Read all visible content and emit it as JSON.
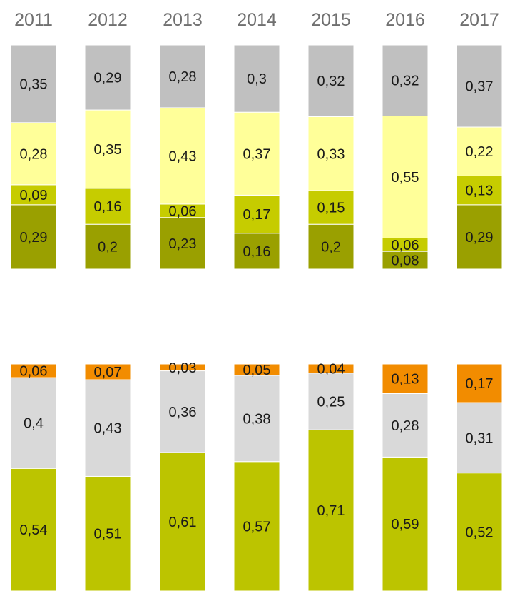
{
  "chart_data": [
    {
      "type": "bar",
      "stacked": "percent",
      "title": "",
      "xlabel": "",
      "ylabel": "",
      "categories": [
        "2011",
        "2012",
        "2013",
        "2014",
        "2015",
        "2016",
        "2017"
      ],
      "ylim": [
        0,
        1
      ],
      "grid": false,
      "legend": "none",
      "series": [
        {
          "color": "#9aa000",
          "values": [
            0.29,
            0.2,
            0.23,
            0.16,
            0.2,
            0.08,
            0.29
          ],
          "labels": [
            "0,29",
            "0,2",
            "0,23",
            "0,16",
            "0,2",
            "0,08",
            "0,29"
          ]
        },
        {
          "color": "#c6cc00",
          "values": [
            0.09,
            0.16,
            0.06,
            0.17,
            0.15,
            0.06,
            0.13
          ],
          "labels": [
            "0,09",
            "0,16",
            "0,06",
            "0,17",
            "0,15",
            "0,06",
            "0,13"
          ]
        },
        {
          "color": "#ffff99",
          "values": [
            0.28,
            0.35,
            0.43,
            0.37,
            0.33,
            0.55,
            0.22
          ],
          "labels": [
            "0,28",
            "0,35",
            "0,43",
            "0,37",
            "0,33",
            "0,55",
            "0,22"
          ]
        },
        {
          "color": "#c0c0c0",
          "values": [
            0.35,
            0.29,
            0.28,
            0.3,
            0.32,
            0.32,
            0.37
          ],
          "labels": [
            "0,35",
            "0,29",
            "0,28",
            "0,3",
            "0,32",
            "0,32",
            "0,37"
          ]
        }
      ]
    },
    {
      "type": "bar",
      "stacked": "percent",
      "title": "",
      "xlabel": "",
      "ylabel": "",
      "categories": [
        "2011",
        "2012",
        "2013",
        "2014",
        "2015",
        "2016",
        "2017"
      ],
      "ylim": [
        0,
        1
      ],
      "grid": false,
      "legend": "none",
      "series": [
        {
          "color": "#bcc400",
          "values": [
            0.54,
            0.51,
            0.61,
            0.57,
            0.71,
            0.59,
            0.52
          ],
          "labels": [
            "0,54",
            "0,51",
            "0,61",
            "0,57",
            "0,71",
            "0,59",
            "0,52"
          ]
        },
        {
          "color": "#d9d9d9",
          "values": [
            0.4,
            0.43,
            0.36,
            0.38,
            0.25,
            0.28,
            0.31
          ],
          "labels": [
            "0,4",
            "0,43",
            "0,36",
            "0,38",
            "0,25",
            "0,28",
            "0,31"
          ]
        },
        {
          "color": "#f28c00",
          "values": [
            0.06,
            0.07,
            0.03,
            0.05,
            0.04,
            0.13,
            0.17
          ],
          "labels": [
            "0,06",
            "0,07",
            "0,03",
            "0,05",
            "0,04",
            "0,13",
            "0,17"
          ]
        }
      ]
    }
  ]
}
